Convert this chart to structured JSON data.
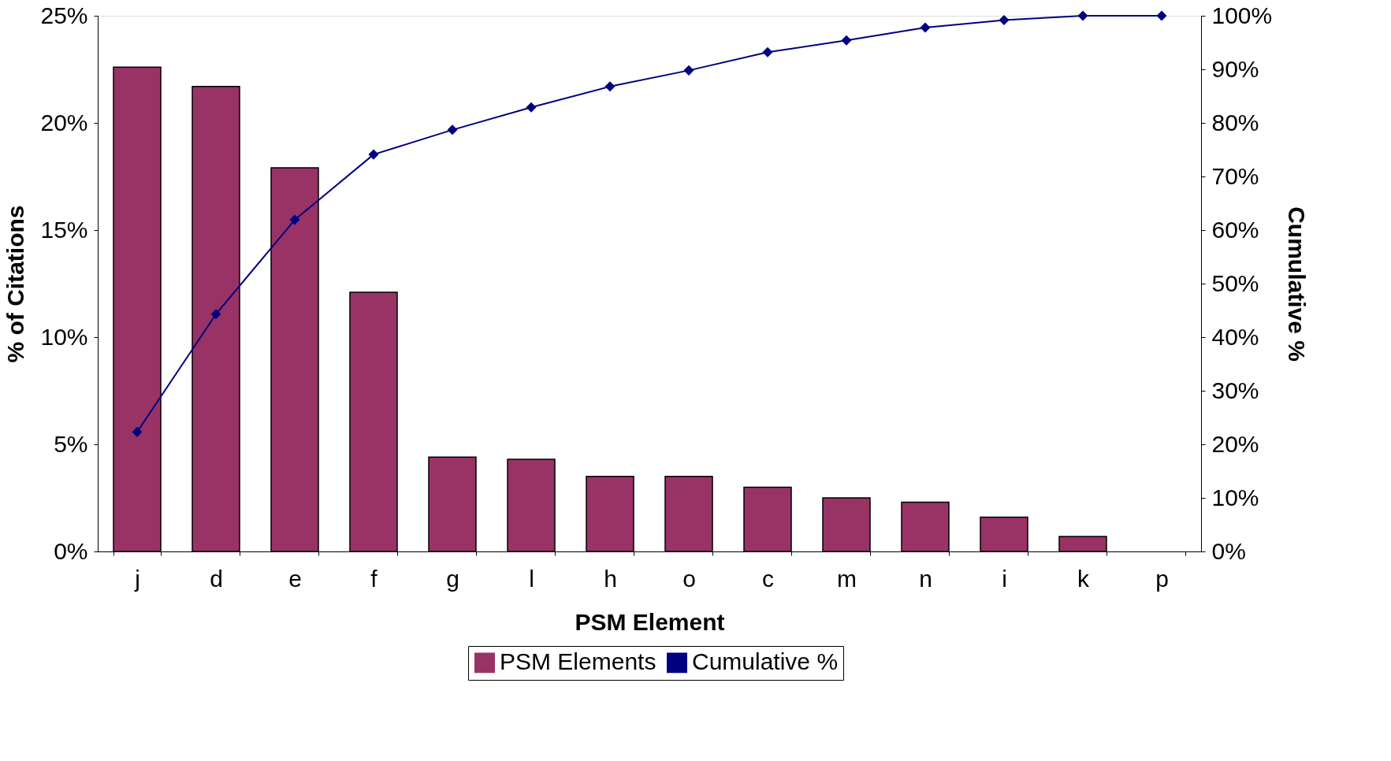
{
  "chart_data": {
    "type": "bar",
    "xlabel": "PSM Element",
    "ylabel": "% of Citations",
    "y2label": "Cumulative %",
    "categories": [
      "j",
      "d",
      "e",
      "f",
      "g",
      "l",
      "h",
      "o",
      "c",
      "m",
      "n",
      "i",
      "k",
      "p"
    ],
    "series": [
      {
        "name": "PSM Elements",
        "color": "#993366",
        "values": [
          22.6,
          21.7,
          17.9,
          12.1,
          4.4,
          4.3,
          3.5,
          3.5,
          3.0,
          2.5,
          2.3,
          1.6,
          0.7,
          0
        ]
      },
      {
        "name": "Cumulative %",
        "type": "line",
        "axis": "y2",
        "color": "#000080",
        "marker": "diamond",
        "values": [
          22.3,
          44.3,
          61.9,
          74.1,
          78.7,
          82.9,
          86.8,
          89.8,
          93.2,
          95.4,
          97.8,
          99.2,
          100,
          100
        ]
      }
    ],
    "ylim": [
      0,
      25
    ],
    "yticks": [
      {
        "value": 0,
        "label": "0%"
      },
      {
        "value": 5,
        "label": "5%"
      },
      {
        "value": 10,
        "label": "10%"
      },
      {
        "value": 15,
        "label": "15%"
      },
      {
        "value": 20,
        "label": "20%"
      },
      {
        "value": 25,
        "label": "25%"
      }
    ],
    "y2lim": [
      0,
      100
    ],
    "y2ticks": [
      {
        "value": 0,
        "label": "0%"
      },
      {
        "value": 10,
        "label": "10%"
      },
      {
        "value": 20,
        "label": "20%"
      },
      {
        "value": 30,
        "label": "30%"
      },
      {
        "value": 40,
        "label": "40%"
      },
      {
        "value": 50,
        "label": "50%"
      },
      {
        "value": 60,
        "label": "60%"
      },
      {
        "value": 70,
        "label": "70%"
      },
      {
        "value": 80,
        "label": "80%"
      },
      {
        "value": 90,
        "label": "90%"
      },
      {
        "value": 100,
        "label": "100%"
      }
    ],
    "legend": "bottom",
    "grid": false
  }
}
